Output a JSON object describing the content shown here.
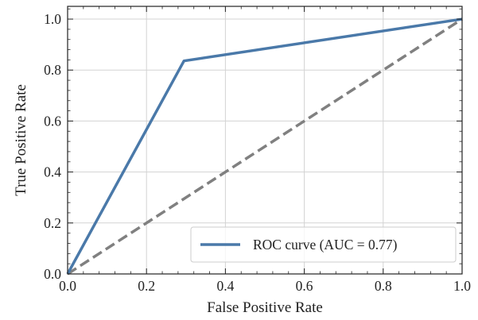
{
  "chart_data": {
    "type": "line",
    "xlabel": "False Positive Rate",
    "ylabel": "True Positive Rate",
    "xlim": [
      0.0,
      1.0
    ],
    "ylim": [
      0.0,
      1.05
    ],
    "xticks": [
      "0.0",
      "0.2",
      "0.4",
      "0.6",
      "0.8",
      "1.0"
    ],
    "yticks": [
      "0.0",
      "0.2",
      "0.4",
      "0.6",
      "0.8",
      "1.0"
    ],
    "grid": true,
    "legend_position": "bottom-right",
    "series": [
      {
        "name": "ROC curve (AUC = 0.77)",
        "style": "solid",
        "color": "#4a79a9",
        "x": [
          0.0,
          0.295,
          1.0
        ],
        "y": [
          0.0,
          0.836,
          1.0
        ]
      },
      {
        "style": "dashed",
        "color": "#808080",
        "x": [
          0.0,
          1.0
        ],
        "y": [
          0.0,
          1.0
        ]
      }
    ]
  }
}
